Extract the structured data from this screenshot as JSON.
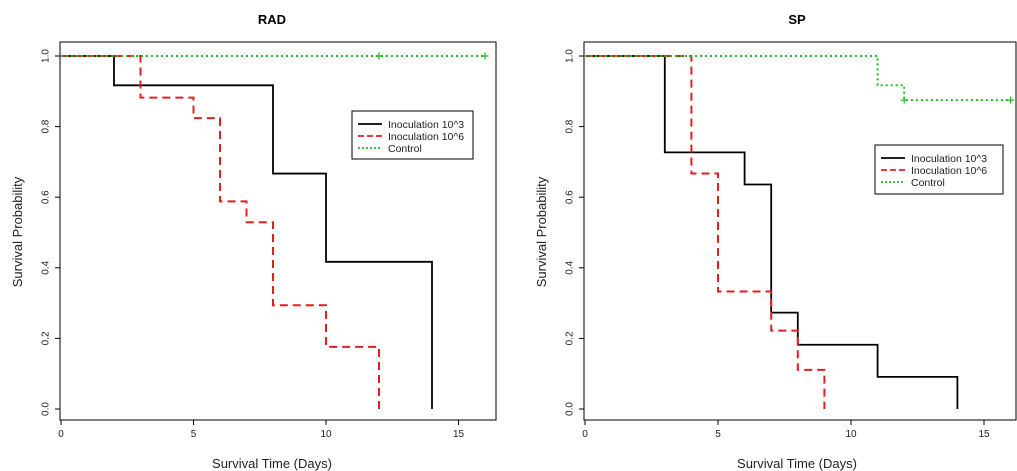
{
  "chart_data": [
    {
      "type": "line",
      "subtype": "kaplan-meier step",
      "title": "RAD",
      "xlabel": "Survival Time (Days)",
      "ylabel": "Survival Probability",
      "xlim": [
        0,
        16.5
      ],
      "ylim": [
        0,
        1.0
      ],
      "x_ticks": [
        0,
        5,
        10,
        15
      ],
      "x_tick_labels": [
        "0",
        "5",
        "10",
        "15"
      ],
      "y_ticks": [
        0,
        0.2,
        0.4,
        0.6,
        0.8,
        1.0
      ],
      "y_tick_labels": [
        "0.0",
        "0.2",
        "0.4",
        "0.6",
        "0.8",
        "1.0"
      ],
      "grid": false,
      "legend_position": "right",
      "series": [
        {
          "name": "Inoculation 10^3",
          "color": "#000000",
          "line_style": "solid",
          "x": [
            0,
            2,
            8,
            10,
            14
          ],
          "y": [
            1.0,
            0.917,
            0.667,
            0.417,
            0.0
          ],
          "censored": []
        },
        {
          "name": "Inoculation 10^6",
          "color": "#e02020",
          "line_style": "dashed",
          "x": [
            0,
            3,
            5,
            6,
            7,
            8,
            10,
            12
          ],
          "y": [
            1.0,
            0.882,
            0.824,
            0.588,
            0.529,
            0.294,
            0.176,
            0.0
          ],
          "censored": []
        },
        {
          "name": "Control",
          "color": "#22bb22",
          "line_style": "dotted",
          "x": [
            0,
            16
          ],
          "y": [
            1.0,
            1.0
          ],
          "censored": [
            12,
            16
          ]
        }
      ]
    },
    {
      "type": "line",
      "subtype": "kaplan-meier step",
      "title": "SP",
      "xlabel": "Survival Time (Days)",
      "ylabel": "Survival Probability",
      "xlim": [
        0,
        16.5
      ],
      "ylim": [
        0,
        1.0
      ],
      "x_ticks": [
        0,
        5,
        10,
        15
      ],
      "x_tick_labels": [
        "0",
        "5",
        "10",
        "15"
      ],
      "y_ticks": [
        0,
        0.2,
        0.4,
        0.6,
        0.8,
        1.0
      ],
      "y_tick_labels": [
        "0.0",
        "0.2",
        "0.4",
        "0.6",
        "0.8",
        "1.0"
      ],
      "grid": false,
      "legend_position": "right",
      "series": [
        {
          "name": "Inoculation 10^3",
          "color": "#000000",
          "line_style": "solid",
          "x": [
            0,
            3,
            6,
            7,
            8,
            11,
            14
          ],
          "y": [
            1.0,
            0.727,
            0.636,
            0.273,
            0.182,
            0.091,
            0.0
          ],
          "censored": []
        },
        {
          "name": "Inoculation 10^6",
          "color": "#e02020",
          "line_style": "dashed",
          "x": [
            0,
            4,
            5,
            7,
            8,
            9
          ],
          "y": [
            1.0,
            0.667,
            0.333,
            0.222,
            0.111,
            0.0
          ],
          "censored": []
        },
        {
          "name": "Control",
          "color": "#22bb22",
          "line_style": "dotted",
          "x": [
            0,
            11,
            12,
            16
          ],
          "y": [
            1.0,
            0.917,
            0.875,
            0.875
          ],
          "censored": [
            12,
            16
          ]
        }
      ]
    }
  ]
}
